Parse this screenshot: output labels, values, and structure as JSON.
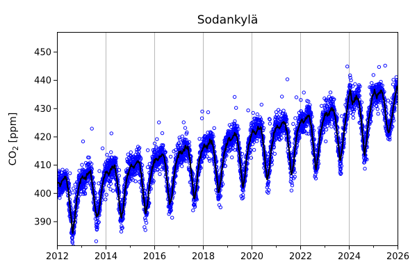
{
  "figure": {
    "title": "Sodankylä",
    "ylabel": {
      "prefix": "CO",
      "sub": "2",
      "suffix": " [ppm]"
    }
  },
  "chart_data": {
    "type": "scatter",
    "title": "Sodankylä",
    "xlabel": "",
    "ylabel": "CO2 [ppm]",
    "x_range": [
      2012,
      2026
    ],
    "y_range": [
      381.5,
      457
    ],
    "x_major_ticks": [
      2012,
      2014,
      2016,
      2018,
      2020,
      2022,
      2024,
      2026
    ],
    "x_minor_ticks": [
      2013,
      2015,
      2017,
      2019,
      2021,
      2023,
      2025
    ],
    "y_ticks": [
      390,
      400,
      410,
      420,
      430,
      440,
      450
    ],
    "grid_x": [
      2014,
      2016,
      2018,
      2020,
      2022,
      2024
    ],
    "grid_on": true,
    "legend": "none",
    "colors": {
      "scatter": "#0000ff",
      "line": "#000000",
      "grid": "#b0b0b0",
      "axis": "#000000",
      "text": "#000000",
      "background": "#ffffff"
    },
    "series": [
      {
        "name": "daily-observations",
        "type": "scatter",
        "marker": "open-circle",
        "marker_radius": 2.2,
        "marker_stroke_width": 1.0,
        "points_per_year": 300,
        "noise_sd": 2.2,
        "outlier_prob": 0.03,
        "outlier_min": 3,
        "outlier_max": 17,
        "neg_outlier_prob": 0.012,
        "neg_outlier_max": 5,
        "seed": 42
      },
      {
        "name": "smoothed-trend",
        "type": "line",
        "line_width": 1.9,
        "steps_per_year": 52,
        "wiggle_sd": 0.4,
        "seed": 7,
        "monthly_start_year": 2012,
        "monthly_values": [
          404.0,
          403.0,
          404.5,
          405.5,
          405.0,
          400.5,
          393.5,
          385.5,
          390.5,
          397.5,
          402.0,
          404.5,
          406.0,
          405.0,
          406.5,
          407.5,
          407.0,
          402.5,
          395.5,
          391.5,
          393.5,
          399.5,
          404.0,
          406.5,
          408.0,
          407.0,
          408.5,
          409.5,
          409.0,
          404.5,
          397.5,
          391.0,
          394.5,
          401.5,
          406.0,
          408.5,
          410.0,
          409.0,
          410.5,
          411.5,
          411.0,
          406.5,
          399.5,
          392.5,
          396.5,
          403.5,
          408.0,
          410.5,
          412.5,
          411.5,
          413.0,
          414.0,
          413.5,
          409.0,
          402.0,
          395.5,
          399.0,
          406.0,
          410.5,
          413.0,
          415.0,
          414.0,
          415.5,
          416.5,
          416.0,
          411.5,
          404.5,
          397.5,
          401.5,
          408.5,
          413.0,
          415.5,
          417.0,
          416.0,
          417.5,
          418.5,
          418.0,
          413.5,
          406.5,
          399.5,
          403.5,
          410.5,
          415.0,
          417.5,
          419.5,
          418.5,
          420.0,
          421.0,
          420.5,
          416.0,
          409.0,
          402.0,
          406.0,
          413.0,
          417.5,
          420.0,
          422.0,
          421.0,
          422.5,
          423.5,
          423.0,
          418.5,
          411.5,
          404.5,
          408.5,
          415.5,
          420.0,
          422.5,
          424.0,
          423.0,
          424.5,
          425.5,
          425.0,
          420.5,
          413.5,
          406.5,
          410.5,
          417.5,
          422.0,
          424.5,
          426.0,
          425.0,
          426.5,
          427.5,
          427.0,
          422.5,
          415.5,
          408.5,
          412.5,
          419.5,
          424.0,
          426.5,
          428.5,
          427.5,
          429.0,
          430.0,
          429.5,
          425.0,
          418.0,
          411.5,
          415.5,
          422.5,
          427.0,
          433.0,
          436.5,
          431.5,
          433.0,
          434.0,
          433.5,
          429.0,
          421.5,
          413.5,
          418.5,
          425.5,
          430.0,
          434.5,
          436.5,
          433.5,
          435.0,
          436.0,
          435.5,
          431.0,
          424.0,
          421.5,
          425.0,
          429.0,
          433.5,
          437.5
        ]
      }
    ]
  }
}
